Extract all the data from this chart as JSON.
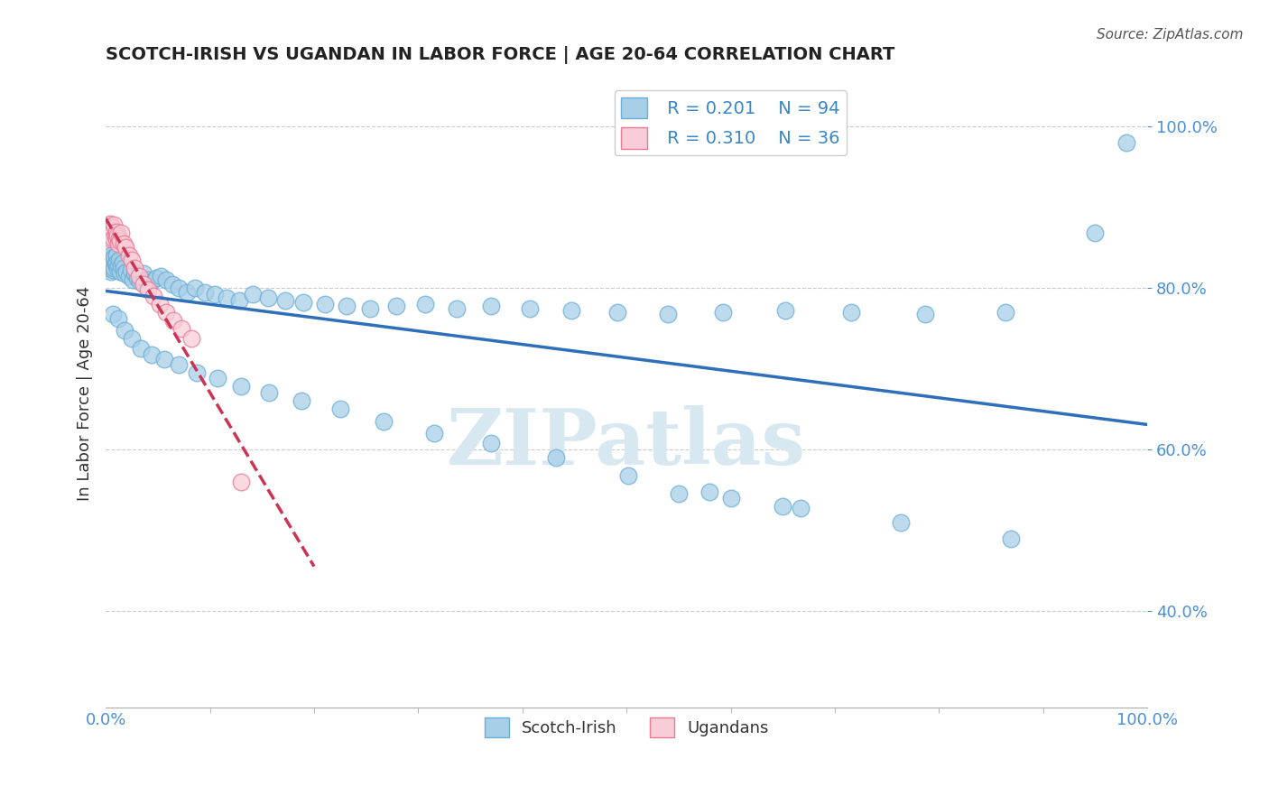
{
  "title": "SCOTCH-IRISH VS UGANDAN IN LABOR FORCE | AGE 20-64 CORRELATION CHART",
  "source": "Source: ZipAtlas.com",
  "ylabel": "In Labor Force | Age 20-64",
  "xlim": [
    0.0,
    1.0
  ],
  "ylim": [
    0.28,
    1.06
  ],
  "scotch_irish_R": "0.201",
  "scotch_irish_N": "94",
  "ugandan_R": "0.310",
  "ugandan_N": "36",
  "scotch_irish_color": "#a8cfe8",
  "scotch_irish_edge_color": "#6aaed6",
  "ugandan_color": "#f9cdd8",
  "ugandan_edge_color": "#e87a96",
  "scotch_irish_line_color": "#2e6fba",
  "ugandan_line_color": "#cc3355",
  "watermark_color": "#d8e8f0",
  "tick_color": "#4a90d9",
  "grid_color": "#cccccc",
  "title_color": "#222222",
  "source_color": "#555555",
  "ylabel_color": "#333333",
  "legend_label_color": "#3a86c8",
  "bottom_legend_color": "#333333",
  "si_x": [
    0.001,
    0.002,
    0.003,
    0.003,
    0.004,
    0.004,
    0.005,
    0.005,
    0.006,
    0.006,
    0.007,
    0.007,
    0.008,
    0.008,
    0.009,
    0.01,
    0.01,
    0.011,
    0.012,
    0.013,
    0.014,
    0.015,
    0.016,
    0.017,
    0.018,
    0.02,
    0.022,
    0.024,
    0.026,
    0.028,
    0.03,
    0.033,
    0.036,
    0.04,
    0.044,
    0.048,
    0.053,
    0.058,
    0.064,
    0.07,
    0.078,
    0.086,
    0.095,
    0.105,
    0.116,
    0.128,
    0.141,
    0.156,
    0.172,
    0.19,
    0.21,
    0.231,
    0.254,
    0.279,
    0.307,
    0.337,
    0.37,
    0.407,
    0.447,
    0.491,
    0.54,
    0.593,
    0.652,
    0.716,
    0.787,
    0.864,
    0.95,
    0.007,
    0.012,
    0.018,
    0.025,
    0.034,
    0.044,
    0.056,
    0.07,
    0.087,
    0.107,
    0.13,
    0.157,
    0.188,
    0.225,
    0.267,
    0.315,
    0.37,
    0.432,
    0.502,
    0.58,
    0.667,
    0.763,
    0.869,
    0.98,
    0.55,
    0.6,
    0.65
  ],
  "si_y": [
    0.835,
    0.83,
    0.838,
    0.825,
    0.84,
    0.828,
    0.832,
    0.82,
    0.835,
    0.828,
    0.83,
    0.822,
    0.838,
    0.825,
    0.83,
    0.84,
    0.832,
    0.825,
    0.828,
    0.835,
    0.82,
    0.828,
    0.832,
    0.825,
    0.818,
    0.82,
    0.815,
    0.822,
    0.81,
    0.818,
    0.812,
    0.808,
    0.818,
    0.81,
    0.808,
    0.812,
    0.815,
    0.81,
    0.805,
    0.8,
    0.795,
    0.8,
    0.795,
    0.792,
    0.788,
    0.785,
    0.792,
    0.788,
    0.785,
    0.782,
    0.78,
    0.778,
    0.775,
    0.778,
    0.78,
    0.775,
    0.778,
    0.775,
    0.772,
    0.77,
    0.768,
    0.77,
    0.772,
    0.77,
    0.768,
    0.77,
    0.868,
    0.768,
    0.762,
    0.748,
    0.738,
    0.725,
    0.718,
    0.712,
    0.705,
    0.695,
    0.688,
    0.678,
    0.67,
    0.66,
    0.65,
    0.635,
    0.62,
    0.608,
    0.59,
    0.568,
    0.548,
    0.528,
    0.51,
    0.49,
    0.98,
    0.545,
    0.54,
    0.53
  ],
  "ug_x": [
    0.001,
    0.002,
    0.003,
    0.003,
    0.004,
    0.004,
    0.005,
    0.005,
    0.006,
    0.006,
    0.007,
    0.007,
    0.008,
    0.009,
    0.01,
    0.01,
    0.011,
    0.012,
    0.013,
    0.014,
    0.015,
    0.017,
    0.019,
    0.022,
    0.025,
    0.028,
    0.032,
    0.036,
    0.041,
    0.046,
    0.052,
    0.058,
    0.065,
    0.073,
    0.082,
    0.13
  ],
  "ug_y": [
    0.875,
    0.87,
    0.878,
    0.865,
    0.88,
    0.868,
    0.872,
    0.86,
    0.875,
    0.868,
    0.87,
    0.862,
    0.878,
    0.865,
    0.87,
    0.86,
    0.865,
    0.855,
    0.862,
    0.858,
    0.868,
    0.855,
    0.85,
    0.84,
    0.835,
    0.825,
    0.815,
    0.805,
    0.798,
    0.79,
    0.78,
    0.77,
    0.76,
    0.75,
    0.738,
    0.56
  ]
}
